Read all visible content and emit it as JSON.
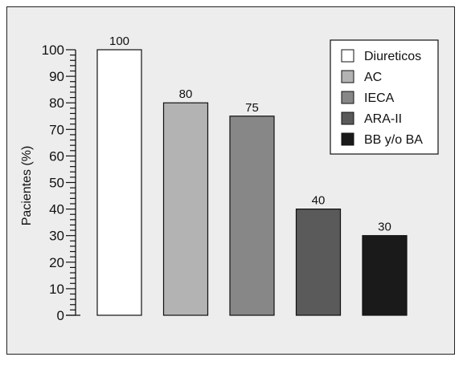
{
  "chart_data": {
    "type": "bar",
    "title": "",
    "xlabel": "",
    "ylabel": "Pacientes (%)",
    "ylim": [
      0,
      100
    ],
    "yticks": [
      0,
      10,
      20,
      30,
      40,
      50,
      60,
      70,
      80,
      90,
      100
    ],
    "categories": [
      "Diureticos",
      "AC",
      "IECA",
      "ARA-II",
      "BB y/o BA"
    ],
    "values": [
      100,
      80,
      75,
      40,
      30
    ],
    "data_labels": [
      "100",
      "80",
      "75",
      "40",
      "30"
    ],
    "colors": [
      "#ffffff",
      "#b3b3b3",
      "#878787",
      "#5a5a5a",
      "#1a1a1a"
    ],
    "legend": {
      "position": "top-right",
      "entries": [
        "Diureticos",
        "AC",
        "IECA",
        "ARA-II",
        "BB y/o BA"
      ]
    },
    "grid": false,
    "background": "#ededed"
  }
}
